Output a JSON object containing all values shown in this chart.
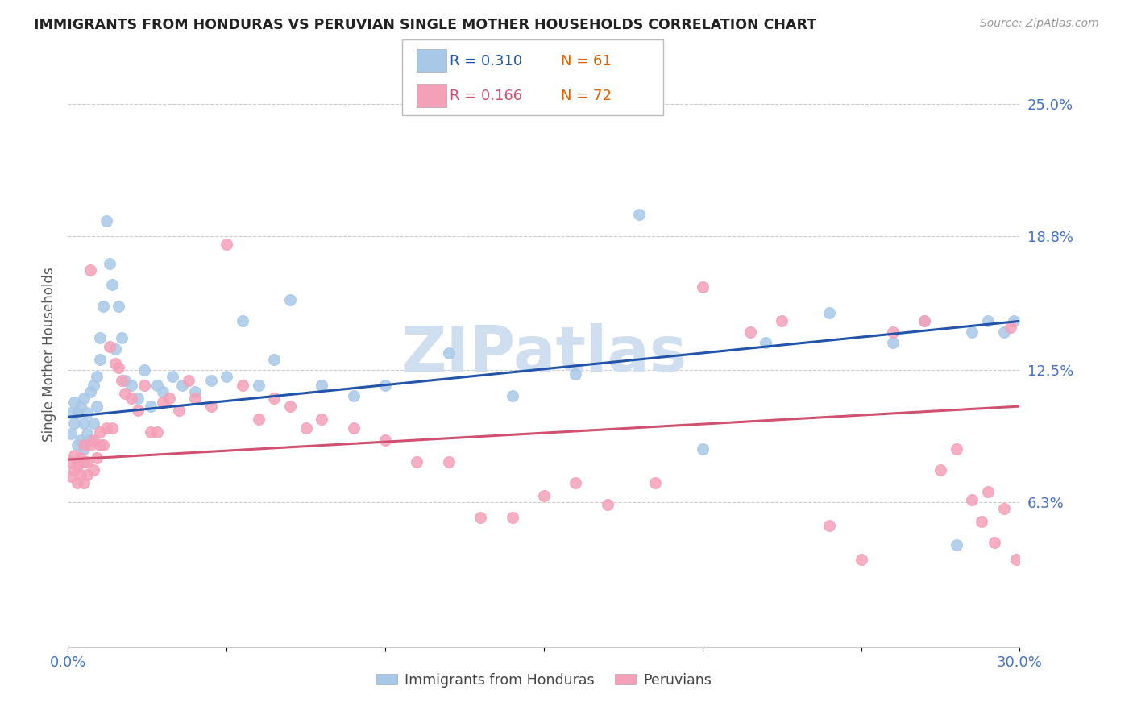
{
  "title": "IMMIGRANTS FROM HONDURAS VS PERUVIAN SINGLE MOTHER HOUSEHOLDS CORRELATION CHART",
  "source": "Source: ZipAtlas.com",
  "ylabel": "Single Mother Households",
  "xlim": [
    0.0,
    0.3
  ],
  "ylim": [
    -0.005,
    0.27
  ],
  "yticks": [
    0.063,
    0.125,
    0.188,
    0.25
  ],
  "ytick_labels": [
    "6.3%",
    "12.5%",
    "18.8%",
    "25.0%"
  ],
  "xticks": [
    0.0,
    0.05,
    0.1,
    0.15,
    0.2,
    0.25,
    0.3
  ],
  "xtick_labels": [
    "0.0%",
    "",
    "",
    "",
    "",
    "",
    "30.0%"
  ],
  "blue_R": "0.310",
  "blue_N": "61",
  "pink_R": "0.166",
  "pink_N": "72",
  "blue_color": "#a8c8e8",
  "pink_color": "#f4a0b8",
  "blue_line_color": "#2255aa",
  "pink_line_color": "#d05070",
  "blue_label": "Immigrants from Honduras",
  "pink_label": "Peruvians",
  "title_color": "#222222",
  "axis_label_color": "#555555",
  "tick_label_color": "#4472c4",
  "grid_color": "#cccccc",
  "watermark": "ZIPatlas",
  "watermark_color": "#d0dff0",
  "blue_line_start_y": 0.103,
  "blue_line_end_y": 0.148,
  "pink_line_start_y": 0.083,
  "pink_line_end_y": 0.108,
  "blue_scatter_x": [
    0.001,
    0.001,
    0.002,
    0.002,
    0.003,
    0.003,
    0.004,
    0.004,
    0.005,
    0.005,
    0.005,
    0.006,
    0.006,
    0.007,
    0.007,
    0.008,
    0.008,
    0.009,
    0.009,
    0.01,
    0.01,
    0.011,
    0.012,
    0.013,
    0.014,
    0.015,
    0.016,
    0.017,
    0.018,
    0.02,
    0.022,
    0.024,
    0.026,
    0.028,
    0.03,
    0.033,
    0.036,
    0.04,
    0.045,
    0.05,
    0.055,
    0.06,
    0.065,
    0.07,
    0.08,
    0.09,
    0.1,
    0.12,
    0.14,
    0.16,
    0.18,
    0.2,
    0.22,
    0.24,
    0.26,
    0.27,
    0.28,
    0.285,
    0.29,
    0.295,
    0.298
  ],
  "blue_scatter_y": [
    0.095,
    0.105,
    0.1,
    0.11,
    0.09,
    0.105,
    0.092,
    0.108,
    0.088,
    0.1,
    0.112,
    0.095,
    0.105,
    0.092,
    0.115,
    0.1,
    0.118,
    0.108,
    0.122,
    0.13,
    0.14,
    0.155,
    0.195,
    0.175,
    0.165,
    0.135,
    0.155,
    0.14,
    0.12,
    0.118,
    0.112,
    0.125,
    0.108,
    0.118,
    0.115,
    0.122,
    0.118,
    0.115,
    0.12,
    0.122,
    0.148,
    0.118,
    0.13,
    0.158,
    0.118,
    0.113,
    0.118,
    0.133,
    0.113,
    0.123,
    0.198,
    0.088,
    0.138,
    0.152,
    0.138,
    0.148,
    0.043,
    0.143,
    0.148,
    0.143,
    0.148
  ],
  "pink_scatter_x": [
    0.001,
    0.001,
    0.002,
    0.002,
    0.003,
    0.003,
    0.004,
    0.004,
    0.005,
    0.005,
    0.005,
    0.006,
    0.006,
    0.007,
    0.007,
    0.008,
    0.008,
    0.009,
    0.01,
    0.01,
    0.011,
    0.012,
    0.013,
    0.014,
    0.015,
    0.016,
    0.017,
    0.018,
    0.02,
    0.022,
    0.024,
    0.026,
    0.028,
    0.03,
    0.032,
    0.035,
    0.038,
    0.04,
    0.045,
    0.05,
    0.055,
    0.06,
    0.065,
    0.07,
    0.075,
    0.08,
    0.09,
    0.1,
    0.11,
    0.12,
    0.13,
    0.14,
    0.15,
    0.16,
    0.17,
    0.185,
    0.2,
    0.215,
    0.225,
    0.24,
    0.25,
    0.26,
    0.27,
    0.275,
    0.28,
    0.285,
    0.288,
    0.29,
    0.292,
    0.295,
    0.297,
    0.299
  ],
  "pink_scatter_y": [
    0.075,
    0.082,
    0.078,
    0.085,
    0.072,
    0.08,
    0.076,
    0.084,
    0.072,
    0.082,
    0.09,
    0.076,
    0.082,
    0.172,
    0.09,
    0.078,
    0.092,
    0.084,
    0.09,
    0.096,
    0.09,
    0.098,
    0.136,
    0.098,
    0.128,
    0.126,
    0.12,
    0.114,
    0.112,
    0.106,
    0.118,
    0.096,
    0.096,
    0.11,
    0.112,
    0.106,
    0.12,
    0.112,
    0.108,
    0.184,
    0.118,
    0.102,
    0.112,
    0.108,
    0.098,
    0.102,
    0.098,
    0.092,
    0.082,
    0.082,
    0.056,
    0.056,
    0.066,
    0.072,
    0.062,
    0.072,
    0.164,
    0.143,
    0.148,
    0.052,
    0.036,
    0.143,
    0.148,
    0.078,
    0.088,
    0.064,
    0.054,
    0.068,
    0.044,
    0.06,
    0.145,
    0.036
  ]
}
